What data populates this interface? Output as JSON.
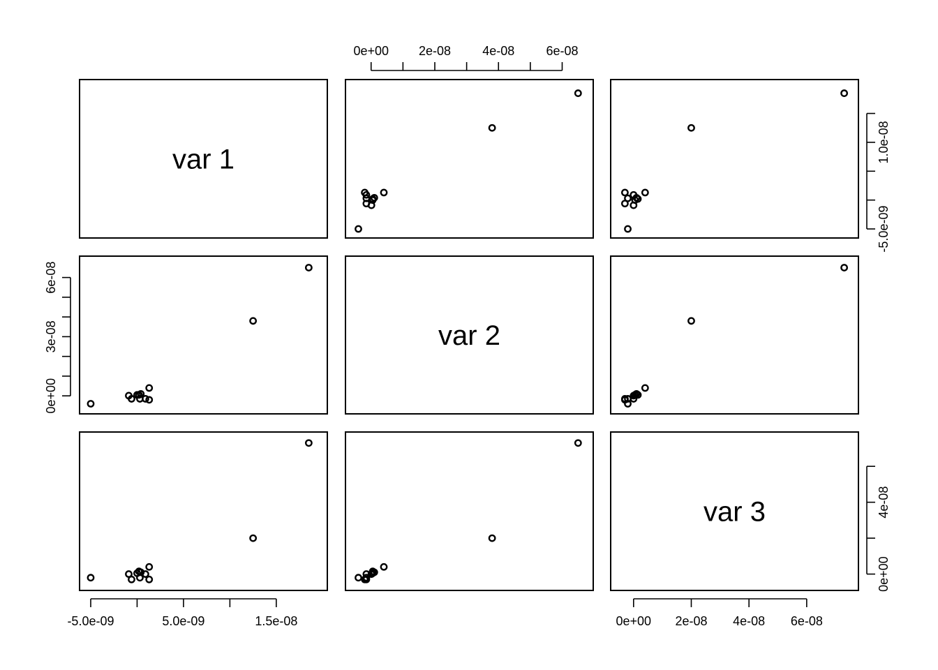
{
  "chart_data": {
    "type": "scatter",
    "variables": [
      "var 1",
      "var 2",
      "var 3"
    ],
    "data": [
      {
        "v1": -5e-09,
        "v2": -4e-09,
        "v3": -2e-09
      },
      {
        "v1": -9e-10,
        "v2": 1e-10,
        "v3": 0.0
      },
      {
        "v1": -6e-10,
        "v2": -1.5e-09,
        "v3": -3e-09
      },
      {
        "v1": 0.0,
        "v2": 5e-10,
        "v3": 5e-10
      },
      {
        "v1": 3e-10,
        "v2": -1.5e-09,
        "v3": -2e-09
      },
      {
        "v1": 4e-10,
        "v2": 1e-09,
        "v3": 1e-09
      },
      {
        "v1": 2e-10,
        "v2": 5e-10,
        "v3": 1.5e-09
      },
      {
        "v1": 9e-10,
        "v2": -1.5e-09,
        "v3": 0.0
      },
      {
        "v1": 1.3e-09,
        "v2": 4e-09,
        "v3": 4e-09
      },
      {
        "v1": 1.3e-09,
        "v2": -2e-09,
        "v3": -3e-09
      },
      {
        "v1": 1.25e-08,
        "v2": 3.8e-08,
        "v3": 2e-08
      },
      {
        "v1": 1.85e-08,
        "v2": 6.5e-08,
        "v3": 7.3e-08
      }
    ],
    "ranges": {
      "v1": [
        -5.6e-09,
        1.99e-08
      ],
      "v2": [
        -6.3e-09,
        6.8e-08
      ],
      "v3": [
        -6e-09,
        7.6e-08
      ]
    },
    "axes": {
      "top_col2": {
        "variable": "v2",
        "ticks": [
          0,
          1e-08,
          2e-08,
          3e-08,
          4e-08,
          5e-08,
          6e-08
        ],
        "labels": [
          "0e+00",
          "",
          "2e-08",
          "",
          "4e-08",
          "",
          "6e-08"
        ]
      },
      "right_row1": {
        "variable": "v1",
        "ticks": [
          -5e-09,
          0,
          5e-09,
          1e-08,
          1.5e-08
        ],
        "labels": [
          "-5.0e-09",
          "",
          "",
          "1.0e-08",
          ""
        ]
      },
      "left_row2": {
        "variable": "v2",
        "ticks": [
          0,
          1e-08,
          2e-08,
          3e-08,
          4e-08,
          5e-08,
          6e-08
        ],
        "labels": [
          "0e+00",
          "",
          "",
          "3e-08",
          "",
          "",
          "6e-08"
        ]
      },
      "bottom_col1": {
        "variable": "v1",
        "ticks": [
          -5e-09,
          0,
          5e-09,
          1e-08,
          1.5e-08
        ],
        "labels": [
          "-5.0e-09",
          "",
          "5.0e-09",
          "",
          "1.5e-08"
        ]
      },
      "bottom_col3": {
        "variable": "v3",
        "ticks": [
          0,
          2e-08,
          4e-08,
          6e-08
        ],
        "labels": [
          "0e+00",
          "2e-08",
          "4e-08",
          "6e-08"
        ]
      },
      "right_row3": {
        "variable": "v3",
        "ticks": [
          0,
          2e-08,
          4e-08,
          6e-08
        ],
        "labels": [
          "0e+00",
          "",
          "4e-08",
          ""
        ]
      }
    },
    "grid": false,
    "legend": "none"
  }
}
